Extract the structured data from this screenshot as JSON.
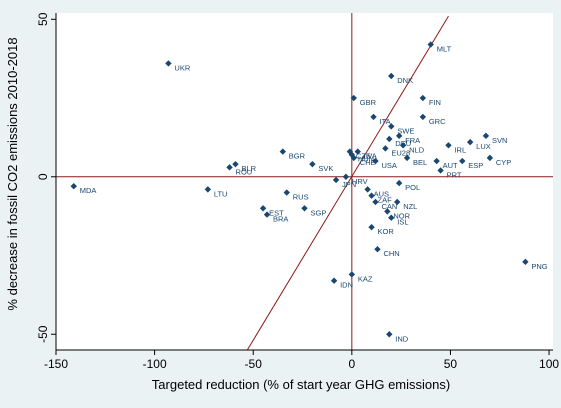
{
  "chart_data": {
    "type": "scatter",
    "xlabel": "Targeted reduction (% of start year GHG emissions)",
    "ylabel": "% decrease in fossil CO2 emissions 2010-2018",
    "xlim": [
      -150,
      102
    ],
    "ylim": [
      -55,
      52
    ],
    "xticks": [
      -150,
      -100,
      -50,
      0,
      50,
      100
    ],
    "yticks": [
      -50,
      0,
      50
    ],
    "grid": false,
    "colors": {
      "background": "#eaf2f3",
      "plot_bg": "#ffffff",
      "reference_lines": "#8b1a1a",
      "points": "#1a476f",
      "labels": "#1a476f",
      "text": "#000000"
    },
    "reference_lines": [
      {
        "type": "vline",
        "x": 0
      },
      {
        "type": "hline",
        "y": 0
      }
    ],
    "fit_line": {
      "from": [
        -53,
        -55
      ],
      "to": [
        49,
        51
      ]
    },
    "points": [
      {
        "label": "MLT",
        "x": 40,
        "y": 42
      },
      {
        "label": "UKR",
        "x": -93,
        "y": 36
      },
      {
        "label": "DNK",
        "x": 20,
        "y": 32
      },
      {
        "label": "GBR",
        "x": 1,
        "y": 25
      },
      {
        "label": "FIN",
        "x": 36,
        "y": 25
      },
      {
        "label": "GRC",
        "x": 36,
        "y": 19
      },
      {
        "label": "ITA",
        "x": 11,
        "y": 19
      },
      {
        "label": "SVN",
        "x": 68,
        "y": 13
      },
      {
        "label": "LUX",
        "x": 60,
        "y": 11
      },
      {
        "label": "IRL",
        "x": 49,
        "y": 10
      },
      {
        "label": "SWE",
        "x": 20,
        "y": 16
      },
      {
        "label": "FRA",
        "x": 24,
        "y": 13
      },
      {
        "label": "NLD",
        "x": 26,
        "y": 10
      },
      {
        "label": "EU28",
        "x": 17,
        "y": 9
      },
      {
        "label": "DEU",
        "x": 19,
        "y": 12
      },
      {
        "label": "BEL",
        "x": 28,
        "y": 6
      },
      {
        "label": "CYP",
        "x": 70,
        "y": 6
      },
      {
        "label": "ESP",
        "x": 56,
        "y": 5
      },
      {
        "label": "AUT",
        "x": 43,
        "y": 5
      },
      {
        "label": "PRT",
        "x": 45,
        "y": 2
      },
      {
        "label": "BGR",
        "x": -35,
        "y": 8
      },
      {
        "label": "ROU",
        "x": -62,
        "y": 3
      },
      {
        "label": "BLR",
        "x": -59,
        "y": 4
      },
      {
        "label": "SVK",
        "x": -20,
        "y": 4
      },
      {
        "label": "CZE",
        "x": -1,
        "y": 8
      },
      {
        "label": "HUN",
        "x": 0,
        "y": 7
      },
      {
        "label": "LVA",
        "x": 3,
        "y": 8
      },
      {
        "label": "CHE",
        "x": 1,
        "y": 6
      },
      {
        "label": "USA",
        "x": 12,
        "y": 5
      },
      {
        "label": "JPN",
        "x": -8,
        "y": -1
      },
      {
        "label": "HRV",
        "x": -3,
        "y": 0
      },
      {
        "label": "POL",
        "x": 24,
        "y": -2
      },
      {
        "label": "AUS",
        "x": 8,
        "y": -4
      },
      {
        "label": "ZAF",
        "x": 10,
        "y": -6
      },
      {
        "label": "CAN",
        "x": 12,
        "y": -8
      },
      {
        "label": "NZL",
        "x": 23,
        "y": -8
      },
      {
        "label": "NOR",
        "x": 18,
        "y": -11
      },
      {
        "label": "ISL",
        "x": 20,
        "y": -13
      },
      {
        "label": "KOR",
        "x": 10,
        "y": -16
      },
      {
        "label": "CHN",
        "x": 13,
        "y": -23
      },
      {
        "label": "RUS",
        "x": -33,
        "y": -5
      },
      {
        "label": "SGP",
        "x": -24,
        "y": -10
      },
      {
        "label": "EST",
        "x": -45,
        "y": -10
      },
      {
        "label": "BRA",
        "x": -43,
        "y": -12
      },
      {
        "label": "LTU",
        "x": -73,
        "y": -4
      },
      {
        "label": "MDA",
        "x": -141,
        "y": -3
      },
      {
        "label": "KAZ",
        "x": 0,
        "y": -31
      },
      {
        "label": "IDN",
        "x": -9,
        "y": -33
      },
      {
        "label": "PNG",
        "x": 88,
        "y": -27
      },
      {
        "label": "IND",
        "x": 19,
        "y": -50
      }
    ]
  }
}
